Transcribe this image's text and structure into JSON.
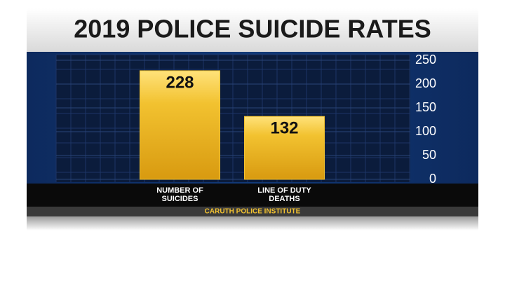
{
  "chart_data": {
    "type": "bar",
    "title": "2019 POLICE SUICIDE RATES",
    "categories": [
      "NUMBER OF SUICIDES",
      "LINE OF DUTY DEATHS"
    ],
    "values": [
      228,
      132
    ],
    "color": "#f2c230",
    "ylim": [
      0,
      250
    ],
    "yticks": [
      0,
      50,
      100,
      150,
      200,
      250
    ],
    "grid": true,
    "source": "CARUTH POLICE INSTITUTE"
  }
}
